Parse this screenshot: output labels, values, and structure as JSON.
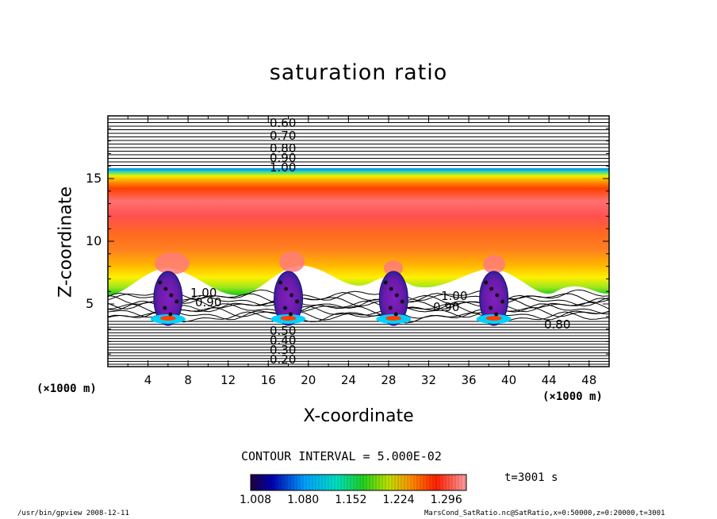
{
  "chart_data": {
    "type": "heatmap",
    "title": "saturation ratio",
    "xlabel": "X-coordinate",
    "ylabel": "Z-coordinate",
    "x_unit": "(×1000 m)",
    "xlim": [
      0,
      50
    ],
    "ylim": [
      0,
      20
    ],
    "x_ticks": [
      "4",
      "8",
      "12",
      "16",
      "20",
      "24",
      "28",
      "32",
      "36",
      "40",
      "44",
      "48"
    ],
    "y_ticks": [
      "5",
      "10",
      "15"
    ],
    "contour_labels": [
      "0.60",
      "0.70",
      "0.80",
      "0.90",
      "1.00",
      "0.90",
      "1.00",
      "0.90",
      "1.00",
      "0.80",
      "0.50",
      "0.40",
      "0.30",
      "0.20"
    ],
    "contour_interval": "CONTOUR INTERVAL = 5.000E-02",
    "colorbar": {
      "ticks": [
        "1.008",
        "1.080",
        "1.152",
        "1.224",
        "1.296"
      ],
      "range": [
        1.008,
        1.296
      ],
      "colormap": "rainbow"
    },
    "cloud_centers_x": [
      6,
      18,
      28.5,
      38.5
    ],
    "time": "t=3001 s"
  },
  "footer": {
    "left": "/usr/bin/gpview   2008-12-11",
    "right": "MarsCond_SatRatio.nc@SatRatio,x=0:50000,z=0:20000,t=3001"
  },
  "colors": {
    "frame": "#000000",
    "background": "#ffffff"
  }
}
